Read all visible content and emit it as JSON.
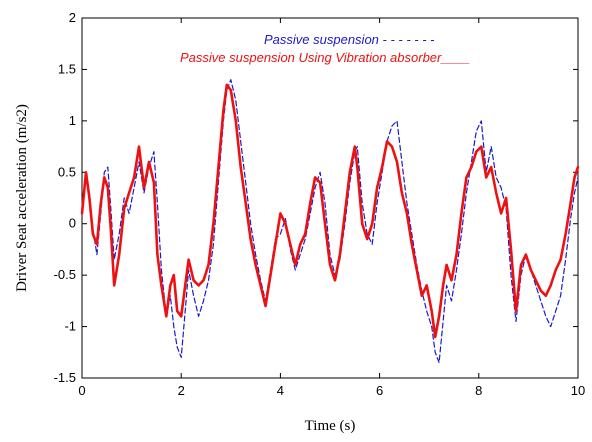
{
  "chart_data": {
    "type": "line",
    "title": "",
    "xlabel": "Time (s)",
    "ylabel": "Driver Seat acceleration (m/s2)",
    "xlim": [
      0,
      10
    ],
    "ylim": [
      -1.5,
      2
    ],
    "x_ticks": [
      "0",
      "2",
      "4",
      "6",
      "8",
      "10"
    ],
    "y_ticks": [
      "-1.5",
      "-1",
      "-0.5",
      "0",
      "0.5",
      "1",
      "1.5",
      "2"
    ],
    "grid": false,
    "legend_position": "top-right",
    "legend": [
      {
        "text": "Passive suspension - - - - - - -",
        "color": "#1a1acc"
      },
      {
        "text": "Passive suspension Using Vibration absorber____",
        "color": "#ee1111"
      }
    ],
    "series": [
      {
        "name": "Passive suspension",
        "color": "#1a1acc",
        "style": "dashed",
        "points": [
          [
            0.0,
            0.2
          ],
          [
            0.08,
            0.45
          ],
          [
            0.15,
            0.3
          ],
          [
            0.22,
            -0.05
          ],
          [
            0.3,
            -0.3
          ],
          [
            0.38,
            0.1
          ],
          [
            0.45,
            0.5
          ],
          [
            0.52,
            0.55
          ],
          [
            0.58,
            0.15
          ],
          [
            0.65,
            -0.35
          ],
          [
            0.75,
            -0.1
          ],
          [
            0.85,
            0.25
          ],
          [
            0.95,
            0.1
          ],
          [
            1.05,
            0.35
          ],
          [
            1.15,
            0.6
          ],
          [
            1.25,
            0.3
          ],
          [
            1.35,
            0.55
          ],
          [
            1.45,
            0.7
          ],
          [
            1.52,
            0.2
          ],
          [
            1.6,
            -0.45
          ],
          [
            1.7,
            -0.9
          ],
          [
            1.78,
            -0.7
          ],
          [
            1.85,
            -1.0
          ],
          [
            1.92,
            -1.2
          ],
          [
            2.0,
            -1.3
          ],
          [
            2.08,
            -0.85
          ],
          [
            2.15,
            -0.45
          ],
          [
            2.25,
            -0.7
          ],
          [
            2.35,
            -0.9
          ],
          [
            2.45,
            -0.75
          ],
          [
            2.55,
            -0.55
          ],
          [
            2.65,
            -0.2
          ],
          [
            2.75,
            0.4
          ],
          [
            2.85,
            1.0
          ],
          [
            2.92,
            1.3
          ],
          [
            3.0,
            1.4
          ],
          [
            3.1,
            1.2
          ],
          [
            3.2,
            0.8
          ],
          [
            3.3,
            0.4
          ],
          [
            3.4,
            0.0
          ],
          [
            3.5,
            -0.3
          ],
          [
            3.6,
            -0.55
          ],
          [
            3.7,
            -0.75
          ],
          [
            3.8,
            -0.45
          ],
          [
            3.9,
            -0.15
          ],
          [
            4.0,
            -0.1
          ],
          [
            4.1,
            0.05
          ],
          [
            4.2,
            -0.25
          ],
          [
            4.3,
            -0.45
          ],
          [
            4.4,
            -0.3
          ],
          [
            4.5,
            -0.15
          ],
          [
            4.6,
            0.1
          ],
          [
            4.7,
            0.35
          ],
          [
            4.8,
            0.5
          ],
          [
            4.9,
            0.2
          ],
          [
            5.0,
            -0.3
          ],
          [
            5.1,
            -0.5
          ],
          [
            5.2,
            -0.35
          ],
          [
            5.3,
            0.0
          ],
          [
            5.4,
            0.4
          ],
          [
            5.5,
            0.7
          ],
          [
            5.55,
            0.75
          ],
          [
            5.65,
            0.2
          ],
          [
            5.75,
            -0.1
          ],
          [
            5.85,
            -0.2
          ],
          [
            5.95,
            0.2
          ],
          [
            6.05,
            0.5
          ],
          [
            6.15,
            0.8
          ],
          [
            6.25,
            0.95
          ],
          [
            6.35,
            1.0
          ],
          [
            6.45,
            0.6
          ],
          [
            6.55,
            0.2
          ],
          [
            6.65,
            -0.1
          ],
          [
            6.75,
            -0.4
          ],
          [
            6.85,
            -0.65
          ],
          [
            6.95,
            -0.85
          ],
          [
            7.05,
            -1.0
          ],
          [
            7.12,
            -1.25
          ],
          [
            7.2,
            -1.35
          ],
          [
            7.28,
            -0.95
          ],
          [
            7.35,
            -0.6
          ],
          [
            7.45,
            -0.75
          ],
          [
            7.55,
            -0.45
          ],
          [
            7.65,
            -0.1
          ],
          [
            7.75,
            0.3
          ],
          [
            7.85,
            0.6
          ],
          [
            7.95,
            0.9
          ],
          [
            8.05,
            1.0
          ],
          [
            8.15,
            0.5
          ],
          [
            8.25,
            0.75
          ],
          [
            8.35,
            0.45
          ],
          [
            8.45,
            0.35
          ],
          [
            8.55,
            0.15
          ],
          [
            8.65,
            -0.5
          ],
          [
            8.75,
            -0.95
          ],
          [
            8.85,
            -0.5
          ],
          [
            8.95,
            -0.3
          ],
          [
            9.05,
            -0.45
          ],
          [
            9.15,
            -0.6
          ],
          [
            9.25,
            -0.75
          ],
          [
            9.35,
            -0.9
          ],
          [
            9.45,
            -1.0
          ],
          [
            9.55,
            -0.85
          ],
          [
            9.65,
            -0.7
          ],
          [
            9.75,
            -0.35
          ],
          [
            9.85,
            0.05
          ],
          [
            9.93,
            0.3
          ],
          [
            10.0,
            0.45
          ]
        ]
      },
      {
        "name": "Passive suspension Using Vibration absorber",
        "color": "#ee1111",
        "style": "solid",
        "points": [
          [
            0.0,
            0.1
          ],
          [
            0.08,
            0.5
          ],
          [
            0.15,
            0.25
          ],
          [
            0.22,
            -0.1
          ],
          [
            0.3,
            -0.2
          ],
          [
            0.38,
            0.2
          ],
          [
            0.45,
            0.45
          ],
          [
            0.52,
            0.35
          ],
          [
            0.58,
            -0.05
          ],
          [
            0.65,
            -0.6
          ],
          [
            0.75,
            -0.3
          ],
          [
            0.85,
            0.15
          ],
          [
            0.95,
            0.3
          ],
          [
            1.05,
            0.45
          ],
          [
            1.15,
            0.75
          ],
          [
            1.25,
            0.35
          ],
          [
            1.35,
            0.6
          ],
          [
            1.45,
            0.4
          ],
          [
            1.52,
            -0.3
          ],
          [
            1.6,
            -0.6
          ],
          [
            1.7,
            -0.9
          ],
          [
            1.78,
            -0.6
          ],
          [
            1.85,
            -0.5
          ],
          [
            1.92,
            -0.85
          ],
          [
            2.0,
            -0.9
          ],
          [
            2.08,
            -0.6
          ],
          [
            2.15,
            -0.35
          ],
          [
            2.25,
            -0.55
          ],
          [
            2.35,
            -0.6
          ],
          [
            2.45,
            -0.55
          ],
          [
            2.55,
            -0.4
          ],
          [
            2.65,
            0.0
          ],
          [
            2.75,
            0.55
          ],
          [
            2.85,
            1.1
          ],
          [
            2.92,
            1.35
          ],
          [
            3.0,
            1.3
          ],
          [
            3.1,
            1.0
          ],
          [
            3.2,
            0.55
          ],
          [
            3.3,
            0.2
          ],
          [
            3.4,
            -0.15
          ],
          [
            3.5,
            -0.4
          ],
          [
            3.6,
            -0.6
          ],
          [
            3.7,
            -0.8
          ],
          [
            3.8,
            -0.5
          ],
          [
            3.9,
            -0.2
          ],
          [
            4.0,
            0.1
          ],
          [
            4.1,
            0.0
          ],
          [
            4.2,
            -0.2
          ],
          [
            4.3,
            -0.4
          ],
          [
            4.4,
            -0.2
          ],
          [
            4.5,
            -0.1
          ],
          [
            4.6,
            0.2
          ],
          [
            4.7,
            0.45
          ],
          [
            4.8,
            0.4
          ],
          [
            4.9,
            0.0
          ],
          [
            5.0,
            -0.4
          ],
          [
            5.1,
            -0.55
          ],
          [
            5.2,
            -0.3
          ],
          [
            5.3,
            0.1
          ],
          [
            5.4,
            0.5
          ],
          [
            5.5,
            0.75
          ],
          [
            5.55,
            0.55
          ],
          [
            5.65,
            0.0
          ],
          [
            5.75,
            -0.15
          ],
          [
            5.85,
            0.0
          ],
          [
            5.95,
            0.35
          ],
          [
            6.05,
            0.55
          ],
          [
            6.15,
            0.8
          ],
          [
            6.25,
            0.75
          ],
          [
            6.35,
            0.6
          ],
          [
            6.45,
            0.3
          ],
          [
            6.55,
            0.1
          ],
          [
            6.65,
            -0.2
          ],
          [
            6.75,
            -0.45
          ],
          [
            6.85,
            -0.7
          ],
          [
            6.95,
            -0.6
          ],
          [
            7.05,
            -0.85
          ],
          [
            7.12,
            -1.1
          ],
          [
            7.2,
            -0.9
          ],
          [
            7.28,
            -0.6
          ],
          [
            7.35,
            -0.4
          ],
          [
            7.45,
            -0.55
          ],
          [
            7.55,
            -0.3
          ],
          [
            7.65,
            0.1
          ],
          [
            7.75,
            0.45
          ],
          [
            7.85,
            0.55
          ],
          [
            7.95,
            0.7
          ],
          [
            8.05,
            0.75
          ],
          [
            8.15,
            0.45
          ],
          [
            8.25,
            0.55
          ],
          [
            8.35,
            0.3
          ],
          [
            8.45,
            0.1
          ],
          [
            8.55,
            0.25
          ],
          [
            8.65,
            -0.25
          ],
          [
            8.75,
            -0.85
          ],
          [
            8.85,
            -0.4
          ],
          [
            8.95,
            -0.3
          ],
          [
            9.05,
            -0.45
          ],
          [
            9.15,
            -0.55
          ],
          [
            9.25,
            -0.65
          ],
          [
            9.35,
            -0.7
          ],
          [
            9.45,
            -0.6
          ],
          [
            9.55,
            -0.45
          ],
          [
            9.65,
            -0.35
          ],
          [
            9.75,
            -0.1
          ],
          [
            9.85,
            0.2
          ],
          [
            9.93,
            0.45
          ],
          [
            10.0,
            0.55
          ]
        ]
      }
    ]
  }
}
